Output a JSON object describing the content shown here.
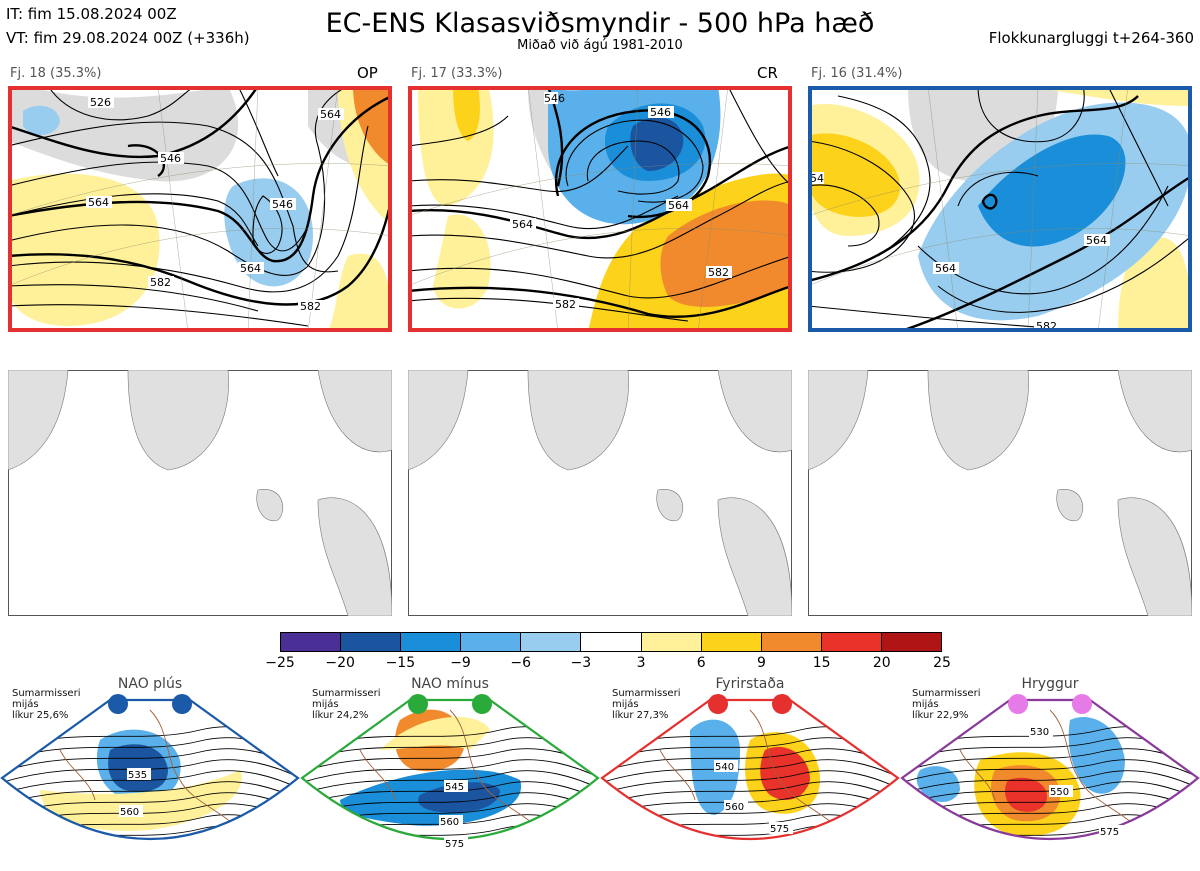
{
  "header": {
    "it_line": "IT: fim 15.08.2024 00Z",
    "vt_line": "VT: fim 29.08.2024 00Z  (+336h)",
    "title": "EC-ENS Klasasviðsmyndir - 500 hPa hæð",
    "subtitle": "Miðað við ágú 1981-2010",
    "window": "Flokkunargluggi t+264-360"
  },
  "panels": [
    {
      "label": "Fj. 18 (35.3%)",
      "tag": "OP",
      "frame_color": "#e53030",
      "contours": [
        "526",
        "546",
        "564",
        "546",
        "564",
        "582",
        "582",
        "564"
      ]
    },
    {
      "label": "Fj. 17 (33.3%)",
      "tag": "CR",
      "frame_color": "#e53030",
      "contours": [
        "546",
        "546",
        "564",
        "564",
        "582",
        "582"
      ]
    },
    {
      "label": "Fj. 16 (31.4%)",
      "tag": "",
      "frame_color": "#1a5aa8",
      "contours": [
        "54",
        "564",
        "564",
        "582"
      ]
    }
  ],
  "colorbar": {
    "ticks": [
      "−25",
      "−20",
      "−15",
      "−9",
      "−6",
      "−3",
      "3",
      "6",
      "9",
      "15",
      "20",
      "25"
    ],
    "colors": [
      "#8b4aa0",
      "#4a2f96",
      "#1b55a0",
      "#1a8ed8",
      "#5ab0ea",
      "#98cdf0",
      "#ffffff",
      "#fff19a",
      "#fdd21a",
      "#f08a2d",
      "#e8322a",
      "#b01515"
    ]
  },
  "regimes": [
    {
      "title": "NAO plús",
      "season": "Sumarmisseri",
      "period": "mijás",
      "likelihood": "líkur 25,6%",
      "dot_color": "#1a5aa8",
      "frame_color": "#1a5aa8",
      "contours": [
        "535",
        "560"
      ]
    },
    {
      "title": "NAO mínus",
      "season": "Sumarmisseri",
      "period": "mijás",
      "likelihood": "líkur 24,2%",
      "dot_color": "#2aaa3a",
      "frame_color": "#2aaa3a",
      "contours": [
        "545",
        "560",
        "575"
      ]
    },
    {
      "title": "Fyrirstaða",
      "season": "Sumarmisseri",
      "period": "mijás",
      "likelihood": "líkur 27,3%",
      "dot_color": "#e53030",
      "frame_color": "#e53030",
      "contours": [
        "540",
        "560",
        "575"
      ]
    },
    {
      "title": "Hryggur",
      "season": "Sumarmisseri",
      "period": "mijás",
      "likelihood": "líkur 22,9%",
      "dot_color": "#e67ae6",
      "frame_color": "#8a3a9a",
      "contours": [
        "530",
        "550",
        "575"
      ]
    }
  ]
}
